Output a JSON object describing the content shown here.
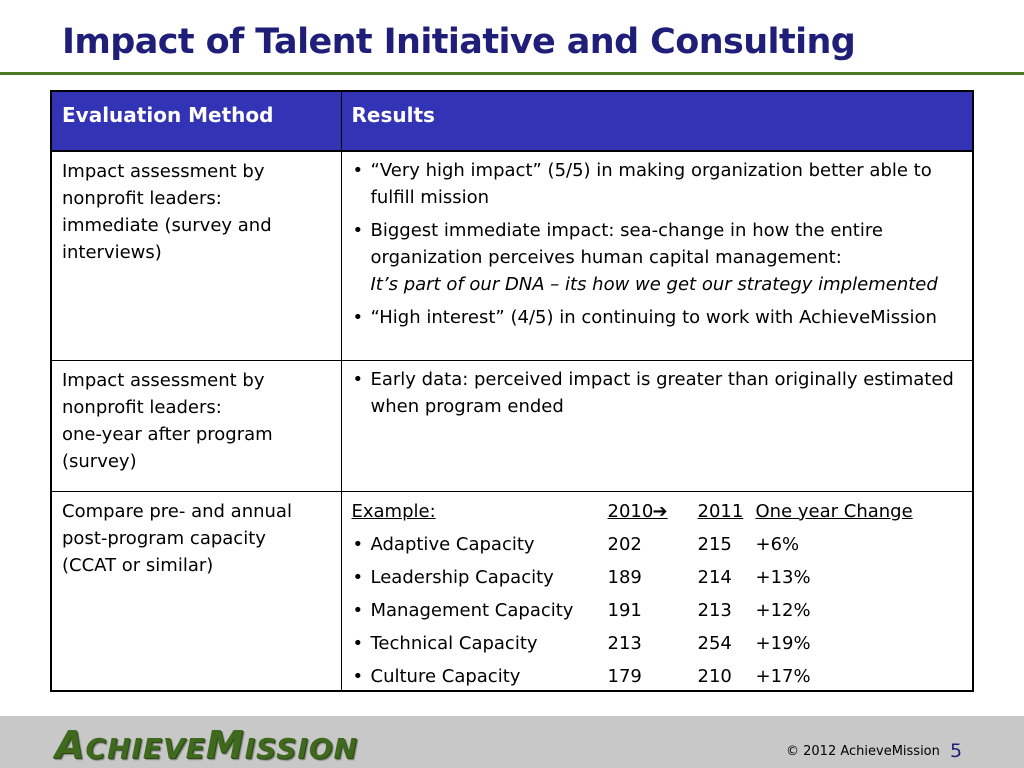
{
  "title": "Impact of Talent Initiative and Consulting",
  "table": {
    "headers": [
      "Evaluation Method",
      "Results"
    ],
    "rows": [
      {
        "method_lines": [
          "Impact assessment by",
          "nonprofit leaders:",
          "immediate (survey and",
          "interviews)"
        ],
        "bullets": [
          {
            "lines": [
              "“Very high impact” (5/5) in making organization better able to",
              "fulfill mission"
            ]
          },
          {
            "lines": [
              "Biggest immediate impact: sea-change in how the entire",
              "organization perceives human capital management:"
            ],
            "italic": "It’s part of our DNA – its how we get our strategy implemented"
          },
          {
            "lines": [
              "“High interest” (4/5) in continuing to work with AchieveMission"
            ]
          }
        ]
      },
      {
        "method_lines": [
          "Impact assessment by",
          "nonprofit leaders:",
          "one-year after program",
          "(survey)"
        ],
        "bullets": [
          {
            "lines": [
              "Early data: perceived impact is greater than originally estimated",
              "when program ended"
            ]
          }
        ]
      },
      {
        "method_lines": [
          "Compare pre- and annual",
          "post-program capacity",
          "(CCAT or similar)"
        ],
        "example": {
          "label": "Example:",
          "year1": "2010",
          "arrow": "➔",
          "year2": "2011",
          "change_label": "One year Change",
          "items": [
            {
              "name": "Adaptive Capacity",
              "v2010": "202",
              "v2011": "215",
              "change": "+6%"
            },
            {
              "name": "Leadership Capacity",
              "v2010": "189",
              "v2011": "214",
              "change": "+13%"
            },
            {
              "name": "Management Capacity",
              "v2010": "191",
              "v2011": "213",
              "change": "+12%"
            },
            {
              "name": "Technical Capacity",
              "v2010": "213",
              "v2011": "254",
              "change": "+19%"
            },
            {
              "name": "Culture Capacity",
              "v2010": "179",
              "v2011": "210",
              "change": "+17%"
            }
          ]
        }
      }
    ]
  },
  "footer": {
    "logo": "AchieveMission",
    "logo_parts": [
      "A",
      "CHIEVE",
      "M",
      "ISSION"
    ],
    "copyright": "© 2012 AchieveMission",
    "page_number": "5"
  },
  "colors": {
    "title": "#1F1F7A",
    "header_bg": "#3333B5",
    "rule": "#4A7A23",
    "logo": "#3F6A1E",
    "footer_bg": "#C8C8C8"
  }
}
